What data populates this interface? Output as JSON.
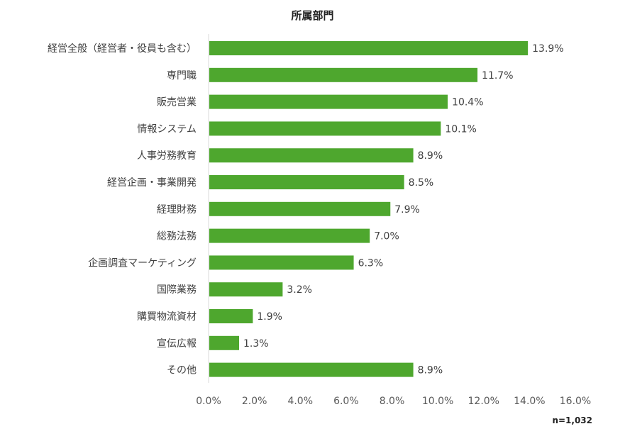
{
  "chart_data": {
    "type": "bar",
    "orientation": "horizontal",
    "title": "所属部門",
    "categories": [
      "経営全般（経営者・役員も含む）",
      "専門職",
      "販売営業",
      "情報システム",
      "人事労務教育",
      "経営企画・事業開発",
      "経理財務",
      "総務法務",
      "企画調査マーケティング",
      "国際業務",
      "購買物流資材",
      "宣伝広報",
      "その他"
    ],
    "values": [
      13.9,
      11.7,
      10.4,
      10.1,
      8.9,
      8.5,
      7.9,
      7.0,
      6.3,
      3.2,
      1.9,
      1.3,
      8.9
    ],
    "data_labels": [
      "13.9%",
      "11.7%",
      "10.4%",
      "10.1%",
      "8.9%",
      "8.5%",
      "7.9%",
      "7.0%",
      "6.3%",
      "3.2%",
      "1.9%",
      "1.3%",
      "8.9%"
    ],
    "xlim": [
      0,
      16
    ],
    "xticks": [
      "0.0%",
      "2.0%",
      "4.0%",
      "6.0%",
      "8.0%",
      "10.0%",
      "12.0%",
      "14.0%",
      "16.0%"
    ],
    "xlabel": "",
    "ylabel": "",
    "grid": false,
    "bar_color": "#4ea72e",
    "note": "n=1,032"
  }
}
